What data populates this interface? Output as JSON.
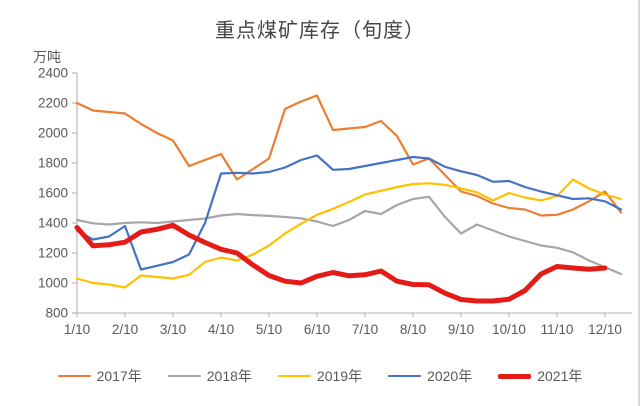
{
  "title": "重点煤矿库存（旬度）",
  "unit_label": "万吨",
  "axis_color": "#BFBFBF",
  "text_color": "#595959",
  "chart_data": {
    "type": "line",
    "title": "重点煤矿库存（旬度）",
    "ylabel": "万吨",
    "ylim": [
      800,
      2400
    ],
    "y_ticks": [
      2400,
      2200,
      2000,
      1800,
      1600,
      1400,
      1200,
      1000,
      800
    ],
    "grid": false,
    "legend_position": "bottom",
    "x": [
      "1/10",
      "1/20",
      "1/31",
      "2/10",
      "2/20",
      "2/28",
      "3/10",
      "3/20",
      "3/31",
      "4/10",
      "4/20",
      "4/30",
      "5/10",
      "5/20",
      "5/31",
      "6/10",
      "6/20",
      "6/30",
      "7/10",
      "7/20",
      "7/31",
      "8/10",
      "8/20",
      "8/31",
      "9/10",
      "9/20",
      "9/30",
      "10/10",
      "10/20",
      "10/31",
      "11/10",
      "11/20",
      "11/30",
      "12/10",
      "12/20"
    ],
    "x_tick_labels": [
      "1/10",
      "2/10",
      "3/10",
      "4/10",
      "5/10",
      "6/10",
      "7/10",
      "8/10",
      "9/10",
      "10/10",
      "11/10",
      "12/10"
    ],
    "series": [
      {
        "name": "2017年",
        "color": "#ED7D31",
        "width": 2.2,
        "values": [
          2200,
          2150,
          2140,
          2130,
          2060,
          2000,
          1950,
          1780,
          1820,
          1860,
          1690,
          1760,
          1830,
          2160,
          2210,
          2250,
          2020,
          2030,
          2040,
          2080,
          1980,
          1790,
          1830,
          1720,
          1610,
          1580,
          1530,
          1500,
          1490,
          1450,
          1455,
          1490,
          1545,
          1610,
          1470
        ]
      },
      {
        "name": "2018年",
        "color": "#A6A6A6",
        "width": 2.2,
        "values": [
          1420,
          1398,
          1390,
          1400,
          1405,
          1400,
          1410,
          1420,
          1430,
          1450,
          1460,
          1453,
          1447,
          1440,
          1431,
          1410,
          1380,
          1420,
          1480,
          1460,
          1520,
          1560,
          1575,
          1440,
          1330,
          1390,
          1350,
          1310,
          1280,
          1250,
          1235,
          1205,
          1150,
          1105,
          1060
        ]
      },
      {
        "name": "2019年",
        "color": "#FFC000",
        "width": 2.2,
        "values": [
          1030,
          1000,
          990,
          970,
          1050,
          1040,
          1030,
          1055,
          1140,
          1170,
          1150,
          1190,
          1250,
          1330,
          1395,
          1455,
          1495,
          1540,
          1590,
          1615,
          1640,
          1660,
          1665,
          1655,
          1630,
          1605,
          1550,
          1600,
          1570,
          1550,
          1580,
          1690,
          1630,
          1590,
          1560
        ]
      },
      {
        "name": "2020年",
        "color": "#4472C4",
        "width": 2.2,
        "values": [
          1350,
          1290,
          1310,
          1380,
          1090,
          1115,
          1140,
          1190,
          1400,
          1730,
          1735,
          1730,
          1740,
          1770,
          1820,
          1850,
          1755,
          1760,
          1780,
          1800,
          1820,
          1840,
          1830,
          1775,
          1745,
          1720,
          1675,
          1680,
          1640,
          1610,
          1585,
          1560,
          1565,
          1545,
          1490
        ]
      },
      {
        "name": "2021年",
        "color": "#E41B17",
        "width": 5,
        "values": [
          1370,
          1248,
          1255,
          1272,
          1340,
          1358,
          1385,
          1320,
          1270,
          1225,
          1200,
          1120,
          1050,
          1012,
          1000,
          1045,
          1070,
          1048,
          1055,
          1080,
          1012,
          990,
          988,
          932,
          890,
          880,
          880,
          892,
          950,
          1060,
          1110,
          1100,
          1092,
          1100
        ]
      }
    ]
  }
}
